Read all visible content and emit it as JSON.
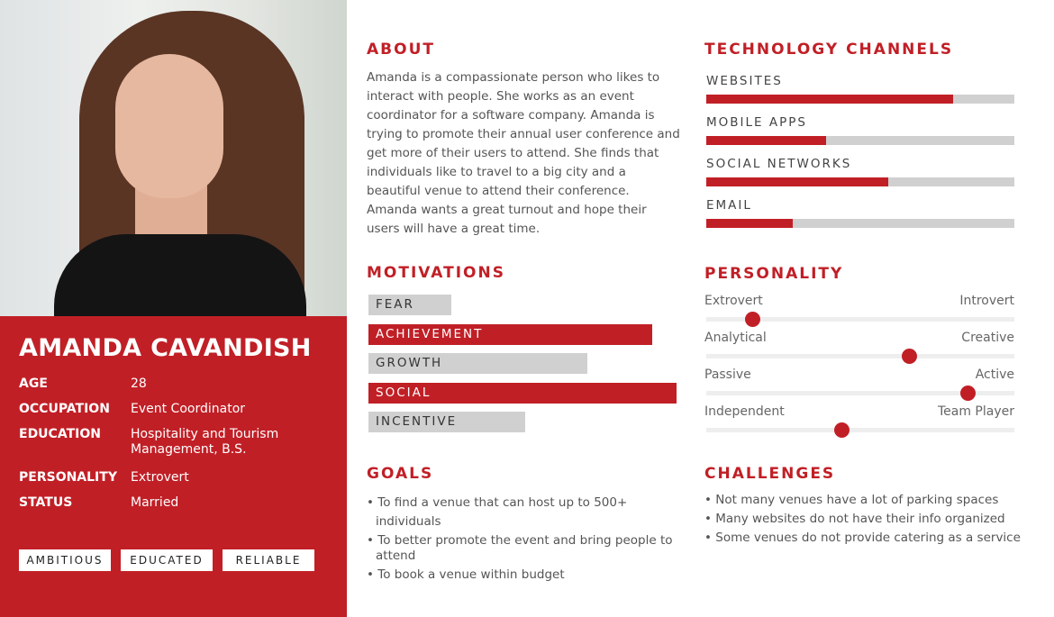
{
  "profile": {
    "name": "AMANDA CAVANDISH",
    "fields": [
      {
        "label": "AGE",
        "value": "28"
      },
      {
        "label": "OCCUPATION",
        "value": "Event Coordinator"
      },
      {
        "label": "EDUCATION",
        "value": "Hospitality and Tourism Management, B.S."
      },
      {
        "label": "PERSONALITY",
        "value": "Extrovert"
      },
      {
        "label": "STATUS",
        "value": "Married"
      }
    ],
    "tags": [
      "AMBITIOUS",
      "EDUCATED",
      "RELIABLE"
    ]
  },
  "about": {
    "title": "ABOUT",
    "text": "Amanda is a compassionate person who likes to interact with people. She works as an event coordinator for a software company. Amanda is trying to promote their annual user conference and get more of their users to attend. She finds that individuals like to travel to a big city and a beautiful venue to attend their conference. Amanda wants a great turnout and hope their users will have a great time."
  },
  "motivations": {
    "title": "MOTIVATIONS",
    "items": [
      {
        "label": "FEAR",
        "level": 0.27,
        "highlight": false
      },
      {
        "label": "ACHIEVEMENT",
        "level": 0.92,
        "highlight": true
      },
      {
        "label": "GROWTH",
        "level": 0.71,
        "highlight": false
      },
      {
        "label": "SOCIAL",
        "level": 1.0,
        "highlight": true
      },
      {
        "label": "INCENTIVE",
        "level": 0.51,
        "highlight": false
      }
    ]
  },
  "goals": {
    "title": "GOALS",
    "items": [
      "• To find a venue that can host up to 500+ individuals",
      "• To better promote the event and bring people to attend",
      "• To book a venue within budget"
    ]
  },
  "technology": {
    "title": "TECHNOLOGY CHANNELS",
    "items": [
      {
        "label": "WEBSITES",
        "level": 0.8
      },
      {
        "label": "MOBILE APPS",
        "level": 0.39
      },
      {
        "label": "SOCIAL NETWORKS",
        "level": 0.59
      },
      {
        "label": "EMAIL",
        "level": 0.28
      }
    ]
  },
  "personality": {
    "title": "PERSONALITY",
    "items": [
      {
        "left": "Extrovert",
        "right": "Introvert",
        "level": 0.15
      },
      {
        "left": "Analytical",
        "right": "Creative",
        "level": 0.66
      },
      {
        "left": "Passive",
        "right": "Active",
        "level": 0.85
      },
      {
        "left": "Independent",
        "right": "Team Player",
        "level": 0.44
      }
    ]
  },
  "challenges": {
    "title": "CHALLENGES",
    "items": [
      "• Not many venues have a lot of parking spaces",
      "• Many websites do not have their info organized",
      "• Some venues do not provide catering as a service"
    ]
  },
  "colors": {
    "accent": "#c11f26",
    "track": "#d0d0d0"
  }
}
